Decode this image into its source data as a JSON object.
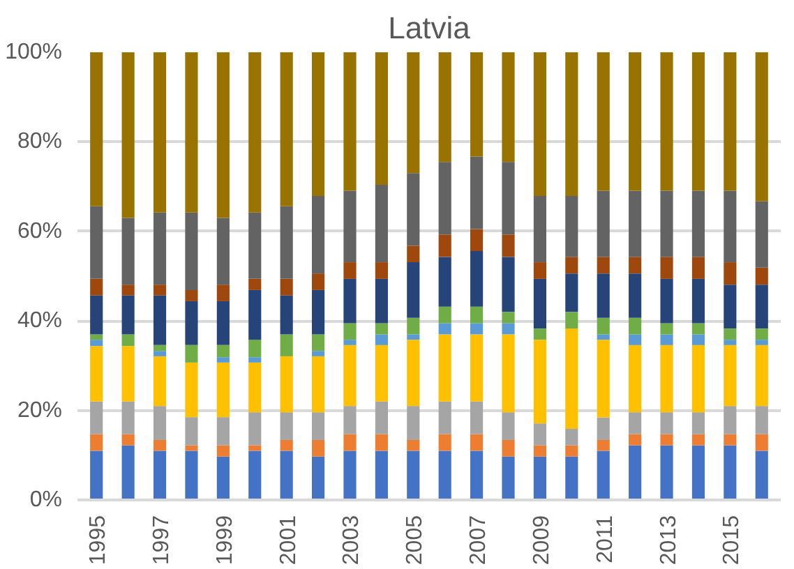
{
  "chart_data": {
    "type": "bar",
    "title": "Latvia",
    "stacked": true,
    "categories": [
      "1995",
      null,
      "1997",
      null,
      "1999",
      null,
      "2001",
      null,
      "2003",
      null,
      "2005",
      null,
      "2007",
      null,
      "2009",
      null,
      "2011",
      null,
      "2013",
      null,
      "2015",
      null
    ],
    "series": [
      {
        "color": "#4472c4",
        "values": [
          11,
          12.2,
          11,
          11,
          9.7,
          11,
          11,
          9.7,
          11,
          11,
          11,
          11,
          11,
          9.7,
          9.7,
          9.7,
          11,
          12.2,
          12.2,
          12.2,
          12.2,
          11
        ]
      },
      {
        "color": "#ed7d31",
        "values": [
          3.7,
          2.5,
          2.4,
          1.2,
          2.5,
          1.2,
          2.4,
          3.7,
          3.7,
          3.7,
          2.4,
          3.7,
          3.7,
          3.7,
          2.5,
          2.5,
          2.4,
          2.5,
          2.5,
          2.5,
          2.5,
          3.7
        ]
      },
      {
        "color": "#a5a5a5",
        "values": [
          7.3,
          7.3,
          7.6,
          6.3,
          6.3,
          7.4,
          6.2,
          6.2,
          6.3,
          7.3,
          7.6,
          7.3,
          7.3,
          6.2,
          4.9,
          3.7,
          5,
          4.9,
          4.9,
          4.9,
          6.3,
          6.3
        ]
      },
      {
        "color": "#ffc000",
        "values": [
          12.4,
          12.4,
          11.1,
          12.2,
          12.2,
          11.1,
          12.5,
          12.5,
          13.6,
          12.6,
          14.8,
          15,
          15,
          17.4,
          18.7,
          22.4,
          17.4,
          15,
          15,
          15,
          13.6,
          13.6
        ]
      },
      {
        "color": "#5b9bd5",
        "values": [
          1.4,
          0,
          1.2,
          0,
          1.2,
          1.2,
          0,
          1.2,
          1.2,
          2.4,
          1.2,
          2.5,
          2.5,
          2.5,
          0,
          0,
          1.2,
          2.4,
          2.4,
          2.4,
          1.2,
          1.2
        ]
      },
      {
        "color": "#70ad47",
        "values": [
          1.2,
          2.6,
          1.3,
          3.9,
          2.7,
          3.9,
          4.9,
          3.7,
          3.7,
          2.5,
          3.7,
          3.7,
          3.7,
          2.5,
          2.5,
          3.7,
          3.7,
          3.7,
          2.5,
          2.5,
          2.5,
          2.5
        ]
      },
      {
        "color": "#264478",
        "values": [
          8.7,
          8.7,
          11.1,
          9.8,
          9.8,
          11.1,
          8.7,
          9.9,
          9.9,
          9.9,
          12.4,
          11.1,
          12.4,
          12.3,
          11.1,
          8.6,
          9.9,
          9.9,
          9.9,
          9.9,
          9.8,
          9.8
        ]
      },
      {
        "color": "#9e480e",
        "values": [
          3.7,
          2.4,
          2.4,
          2.5,
          3.7,
          2.5,
          3.7,
          3.7,
          3.7,
          3.7,
          3.7,
          5,
          4.9,
          5,
          3.7,
          3.7,
          3.7,
          3.7,
          4.9,
          4.9,
          5,
          3.8
        ]
      },
      {
        "color": "#636363",
        "values": [
          16.2,
          14.9,
          16.1,
          17.3,
          14.9,
          14.8,
          16.2,
          17.3,
          16,
          17.3,
          16.2,
          16.2,
          16.2,
          16.2,
          14.8,
          13.6,
          14.8,
          14.8,
          14.8,
          14.8,
          16,
          14.8
        ]
      },
      {
        "color": "#997300",
        "values": [
          34.4,
          37,
          35.8,
          35.8,
          37,
          35.8,
          34.4,
          32.1,
          30.9,
          29.6,
          27,
          24.5,
          23.3,
          24.5,
          32.1,
          32.1,
          30.9,
          30.9,
          30.9,
          30.9,
          30.9,
          33.3
        ]
      }
    ],
    "ylim": [
      0,
      100
    ],
    "yticks": [
      {
        "value": 0,
        "label": "0%"
      },
      {
        "value": 20,
        "label": "20%"
      },
      {
        "value": 40,
        "label": "40%"
      },
      {
        "value": 60,
        "label": "60%"
      },
      {
        "value": 80,
        "label": "80%"
      },
      {
        "value": 100,
        "label": "100%"
      }
    ],
    "grid": "y"
  }
}
